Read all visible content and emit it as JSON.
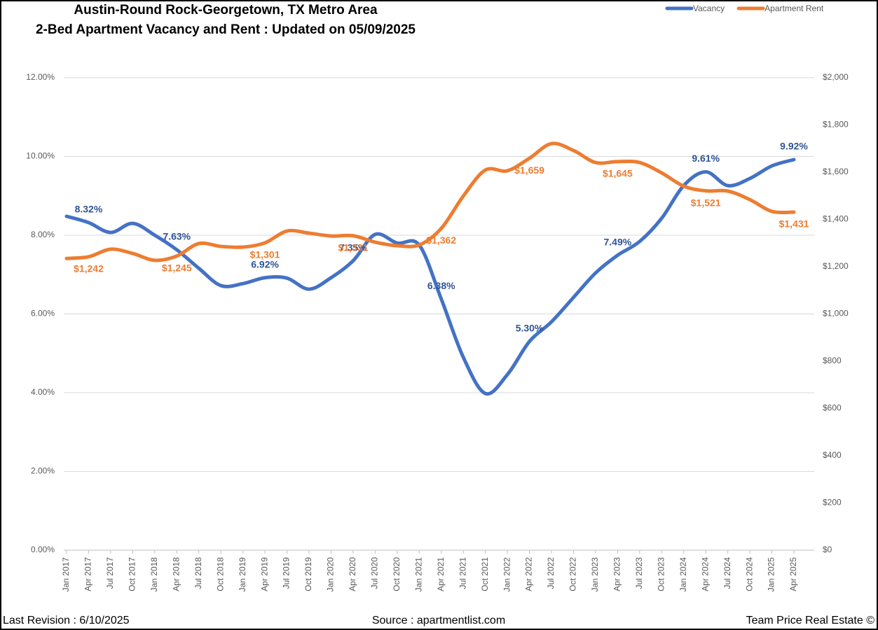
{
  "chart_data": {
    "type": "line",
    "title": "Austin-Round Rock-Georgetown, TX Metro Area",
    "subtitle": "2-Bed Apartment Vacancy and Rent : Updated on 05/09/2025",
    "footer_left": "Last Revision : 6/10/2025",
    "footer_center": "Source : apartmentlist.com",
    "footer_right": "Team Price Real Estate ©",
    "grid": true,
    "legend": "top-right",
    "categories": [
      "Jan 2017",
      "Apr 2017",
      "Jul 2017",
      "Oct 2017",
      "Jan 2018",
      "Apr 2018",
      "Jul 2018",
      "Oct 2018",
      "Jan 2019",
      "Apr 2019",
      "Jul 2019",
      "Oct 2019",
      "Jan 2020",
      "Apr 2020",
      "Jul 2020",
      "Oct 2020",
      "Jan 2021",
      "Apr 2021",
      "Jul 2021",
      "Oct 2021",
      "Jan 2022",
      "Apr 2022",
      "Jul 2022",
      "Oct 2022",
      "Jan 2023",
      "Apr 2023",
      "Jul 2023",
      "Oct 2023",
      "Jan 2024",
      "Apr 2024",
      "Jul 2024",
      "Oct 2024",
      "Jan 2025",
      "Apr 2025"
    ],
    "ylim": [
      0,
      12
    ],
    "yticks": [
      {
        "value": 0,
        "label": "0.00%"
      },
      {
        "value": 2,
        "label": "2.00%"
      },
      {
        "value": 4,
        "label": "4.00%"
      },
      {
        "value": 6,
        "label": "6.00%"
      },
      {
        "value": 8,
        "label": "8.00%"
      },
      {
        "value": 10,
        "label": "10.00%"
      },
      {
        "value": 12,
        "label": "12.00%"
      }
    ],
    "y2lim": [
      0,
      2000
    ],
    "y2ticks": [
      {
        "value": 0,
        "label": "$0"
      },
      {
        "value": 200,
        "label": "$200"
      },
      {
        "value": 400,
        "label": "$400"
      },
      {
        "value": 600,
        "label": "$600"
      },
      {
        "value": 800,
        "label": "$800"
      },
      {
        "value": 1000,
        "label": "$1,000"
      },
      {
        "value": 1200,
        "label": "$1,200"
      },
      {
        "value": 1400,
        "label": "$1,400"
      },
      {
        "value": 1600,
        "label": "$1,600"
      },
      {
        "value": 1800,
        "label": "$1,800"
      },
      {
        "value": 2000,
        "label": "$2,000"
      }
    ],
    "series": [
      {
        "name": "Vacancy",
        "color": "#4472c4",
        "label_color": "#2f5597",
        "values": [
          8.48,
          8.32,
          8.07,
          8.3,
          8.0,
          7.63,
          7.16,
          6.72,
          6.77,
          6.92,
          6.91,
          6.63,
          6.92,
          7.35,
          8.02,
          7.8,
          7.75,
          6.38,
          4.9,
          3.98,
          4.46,
          5.3,
          5.8,
          6.42,
          7.04,
          7.49,
          7.84,
          8.43,
          9.26,
          9.61,
          9.26,
          9.44,
          9.76,
          9.92
        ],
        "value_labels": [
          null,
          "8.32%",
          null,
          null,
          null,
          "7.63%",
          null,
          null,
          null,
          "6.92%",
          null,
          null,
          null,
          "7.35%",
          null,
          null,
          null,
          "6.38%",
          null,
          null,
          null,
          "5.30%",
          null,
          null,
          null,
          "7.49%",
          null,
          null,
          null,
          "9.61%",
          null,
          null,
          null,
          "9.92%"
        ]
      },
      {
        "name": "Apartment Rent",
        "color": "#ed7d31",
        "label_color": "#ed7d31",
        "axis": "y2",
        "values": [
          1235,
          1242,
          1274,
          1256,
          1227,
          1245,
          1298,
          1286,
          1283,
          1301,
          1351,
          1342,
          1330,
          1331,
          1304,
          1289,
          1292,
          1362,
          1499,
          1609,
          1606,
          1659,
          1721,
          1692,
          1641,
          1645,
          1641,
          1597,
          1541,
          1521,
          1520,
          1484,
          1434,
          1431
        ],
        "value_labels": [
          null,
          "$1,242",
          null,
          null,
          null,
          "$1,245",
          null,
          null,
          null,
          "$1,301",
          null,
          null,
          null,
          "$1,331",
          null,
          null,
          null,
          "$1,362",
          null,
          null,
          null,
          "$1,659",
          null,
          null,
          null,
          "$1,645",
          null,
          null,
          null,
          "$1,521",
          null,
          null,
          null,
          "$1,431"
        ]
      }
    ]
  }
}
